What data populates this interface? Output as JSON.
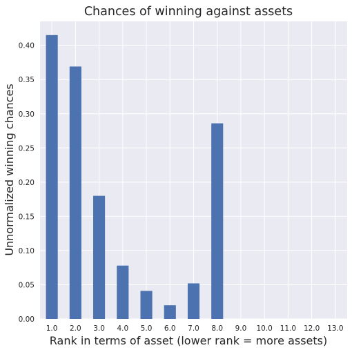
{
  "chart_data": {
    "type": "bar",
    "title": "Chances of winning against assets",
    "xlabel": "Rank in terms of asset (lower rank = more assets)",
    "ylabel": "Unnormalized winning chances",
    "categories": [
      "1.0",
      "2.0",
      "3.0",
      "4.0",
      "5.0",
      "6.0",
      "7.0",
      "8.0",
      "9.0",
      "10.0",
      "11.0",
      "12.0",
      "13.0"
    ],
    "values": [
      0.415,
      0.369,
      0.18,
      0.078,
      0.041,
      0.02,
      0.052,
      0.286,
      0,
      0,
      0,
      0,
      0
    ],
    "ylim": [
      0,
      0.435
    ],
    "yticks": [
      "0.00",
      "0.05",
      "0.10",
      "0.15",
      "0.20",
      "0.25",
      "0.30",
      "0.35",
      "0.40"
    ],
    "grid": true,
    "colors": {
      "bar": "#4c72b0",
      "plot_bg": "#eaeaf2",
      "grid": "#ffffff"
    }
  }
}
